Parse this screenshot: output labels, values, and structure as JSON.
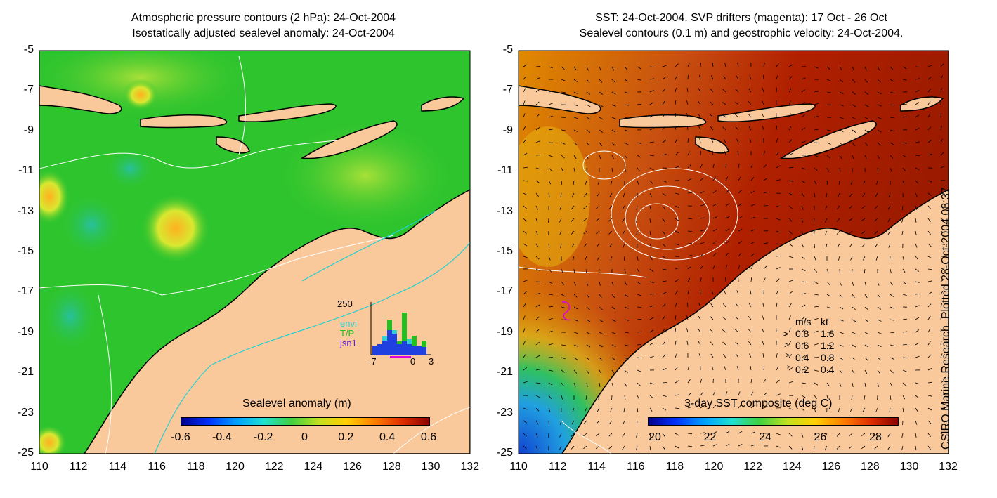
{
  "left_panel": {
    "title_line1": "Atmospheric pressure contours (2 hPa): 24-Oct-2004",
    "title_line2": "Isostatically adjusted sealevel anomaly: 24-Oct-2004",
    "colorbar_label": "Sealevel anomaly (m)",
    "colorbar_ticks": [
      "-0.6",
      "-0.4",
      "-0.2",
      "0",
      "0.2",
      "0.4",
      "0.6"
    ],
    "histogram": {
      "ymax_label": "250",
      "xticks": [
        "-7",
        "0",
        "3"
      ],
      "legend": [
        {
          "label": "envi",
          "color": "#30d0d0"
        },
        {
          "label": "T/P",
          "color": "#20c020"
        },
        {
          "label": "jsn1",
          "color": "#6020d0"
        }
      ]
    }
  },
  "right_panel": {
    "title_line1": "SST: 24-Oct-2004. SVP drifters (magenta): 17 Oct - 26 Oct",
    "title_line2": "Sealevel contours (0.1 m) and geostrophic velocity: 24-Oct-2004.",
    "colorbar_label": "3-day SST composite (deg C)",
    "colorbar_ticks": [
      "20",
      "22",
      "24",
      "26",
      "28"
    ],
    "velocity_key": {
      "header_ms": "m/s",
      "header_kt": "kt",
      "rows": [
        {
          "ms": "0.8",
          "kt": "1.6"
        },
        {
          "ms": "0.6",
          "kt": "1.2"
        },
        {
          "ms": "0.4",
          "kt": "0.8"
        },
        {
          "ms": "0.2",
          "kt": "0.4"
        }
      ]
    }
  },
  "y_ticks": [
    "-5",
    "-7",
    "-9",
    "-11",
    "-13",
    "-15",
    "-17",
    "-19",
    "-21",
    "-23",
    "-25"
  ],
  "x_ticks": [
    "110",
    "112",
    "114",
    "116",
    "118",
    "120",
    "122",
    "124",
    "126",
    "128",
    "130",
    "132"
  ],
  "side_text": "CSIRO Marine Research. Plotted 28-Oct-2004 08:37",
  "colors": {
    "land": "#f9c89b",
    "sea_green": "#2ec42e",
    "sst_red": "#b22000",
    "contour": "#ffffff",
    "coastline": "#000000",
    "drifter": "#e000e0"
  }
}
